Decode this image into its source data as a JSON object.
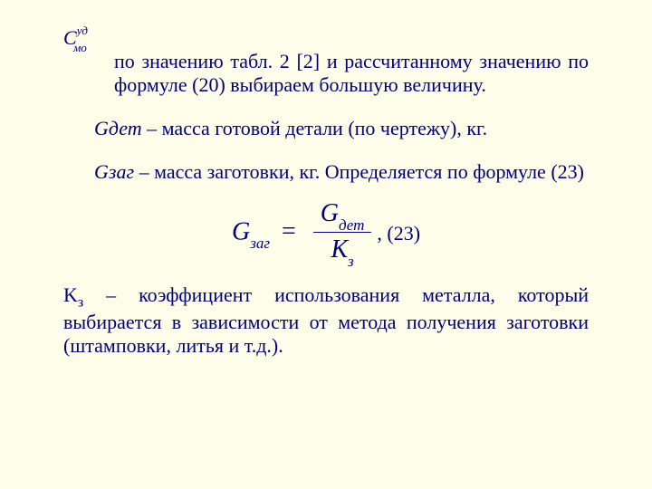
{
  "colors": {
    "background": "#fefdea",
    "text": "#00007a"
  },
  "font": {
    "family": "Times New Roman",
    "body_size_pt": 22,
    "formula_size_pt": 28,
    "sub_size_pt": 17
  },
  "formula_left": {
    "base": "С",
    "sup": "уд",
    "sub": "мо"
  },
  "p1": "по значению табл. 2 [2] и рассчитанному значению по формуле (20) выбираем большую величину.",
  "p2_sym": "Gдет",
  "p2_rest": " – масса готовой детали (по чертежу), кг.",
  "p3_sym": "Gзаг",
  "p3_rest": " – масса заготовки, кг. Определяется по формуле (23)",
  "eq": {
    "lhs_base": "G",
    "lhs_sub": "заг",
    "num_base": "G",
    "num_sub": "дет",
    "den_base": "К",
    "den_sub": "з",
    "number": "(23)"
  },
  "p4_sym": "Kз",
  "p4_rest": " – коэффициент использования металла, который выбирается в зависимости от метода получения заготовки (штамповки, литья и т.д.)."
}
